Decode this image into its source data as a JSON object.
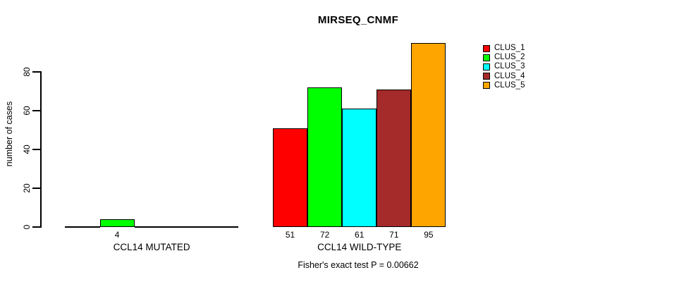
{
  "chart_data": {
    "type": "bar",
    "title": "MIRSEQ_CNMF",
    "ylabel": "number of cases",
    "xlabel": "",
    "ylim": [
      0,
      97
    ],
    "yticks": [
      0,
      20,
      40,
      60,
      80
    ],
    "grid": false,
    "legend_position": "right",
    "series_labels": [
      "CLUS_1",
      "CLUS_2",
      "CLUS_3",
      "CLUS_4",
      "CLUS_5"
    ],
    "colors": [
      "#FF0000",
      "#00FF00",
      "#00FFFF",
      "#A52A2A",
      "#FFA500"
    ],
    "groups": [
      {
        "label": "CCL14 MUTATED",
        "values": [
          0,
          4,
          0,
          0,
          0
        ],
        "value_labels": [
          "",
          "4",
          "",
          "",
          ""
        ]
      },
      {
        "label": "CCL14 WILD-TYPE",
        "values": [
          51,
          72,
          61,
          71,
          95
        ],
        "value_labels": [
          "51",
          "72",
          "61",
          "71",
          "95"
        ]
      }
    ],
    "annotation": "Fisher's exact test P = 0.00662"
  },
  "palette": {
    "background": "#FFFFFF",
    "axis": "#000000",
    "text": "#000000"
  }
}
